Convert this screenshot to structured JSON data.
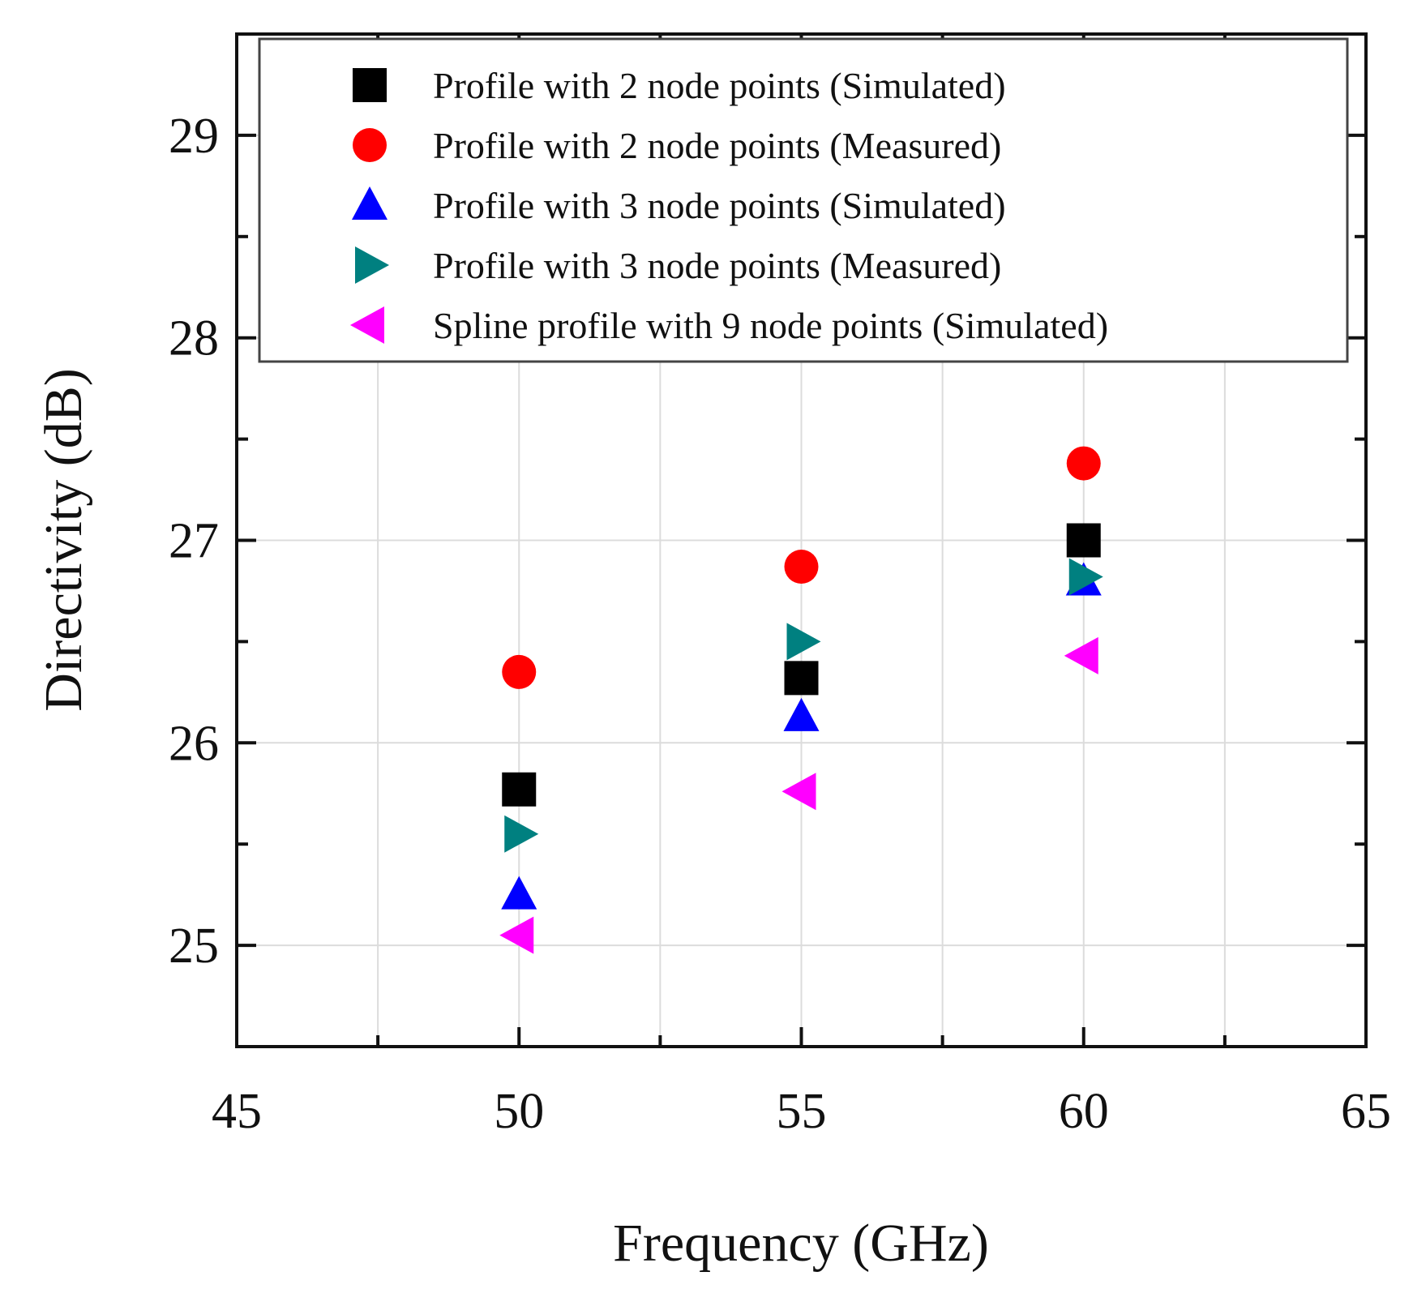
{
  "chart_data": {
    "type": "scatter",
    "title": "",
    "xlabel": "Frequency (GHz)",
    "ylabel": "Directivity (dB)",
    "xlim": [
      45,
      65
    ],
    "ylim": [
      24.5,
      29.5
    ],
    "xticks": [
      45,
      50,
      55,
      60,
      65
    ],
    "yticks": [
      25,
      26,
      27,
      28,
      29
    ],
    "grid": true,
    "legend_position": "top",
    "series": [
      {
        "name": "Profile with 2 node points (Simulated)",
        "marker": "square",
        "color": "#000000",
        "x": [
          50,
          55,
          60
        ],
        "y": [
          25.77,
          26.32,
          27.0
        ]
      },
      {
        "name": "Profile with 2 node points (Measured)",
        "marker": "circle",
        "color": "#ff0000",
        "x": [
          50,
          55,
          60
        ],
        "y": [
          26.35,
          26.87,
          27.38
        ]
      },
      {
        "name": "Profile with 3 node points (Simulated)",
        "marker": "triangle-up",
        "color": "#0000ff",
        "x": [
          50,
          55,
          60
        ],
        "y": [
          25.25,
          26.13,
          26.8
        ]
      },
      {
        "name": "Profile with 3 node points (Measured)",
        "marker": "triangle-right",
        "color": "#008080",
        "x": [
          50,
          55,
          60
        ],
        "y": [
          25.55,
          26.5,
          26.82
        ]
      },
      {
        "name": "Spline profile with 9 node points (Simulated)",
        "marker": "triangle-left",
        "color": "#ff00ff",
        "x": [
          50,
          55,
          60
        ],
        "y": [
          25.05,
          25.76,
          26.43
        ]
      }
    ]
  }
}
